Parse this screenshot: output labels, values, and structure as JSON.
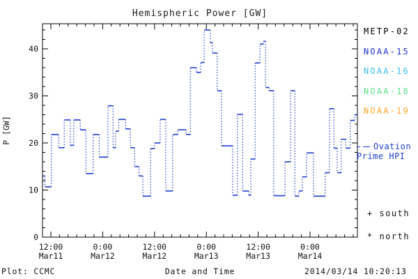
{
  "chart_data": {
    "type": "line",
    "subtype": "step-dotted",
    "title": "Hemispheric Power [GW]",
    "xlabel": "Date and Time",
    "ylabel": "P [GW]",
    "ylim": [
      0,
      45.3
    ],
    "grid": "off",
    "y_major_ticks": [
      0,
      10,
      20,
      30,
      40
    ],
    "y_minor_step_gw": 2,
    "x_minor_step_hours": 2,
    "x_domain_hours_since_Mar11_0000": [
      10.1,
      82.9
    ],
    "x_ticks": [
      {
        "t": 12,
        "time": "12:00",
        "date": "Mar11"
      },
      {
        "t": 24,
        "time": "0:00",
        "date": "Mar12"
      },
      {
        "t": 36,
        "time": "12:00",
        "date": "Mar12"
      },
      {
        "t": 48,
        "time": "0:00",
        "date": "Mar13"
      },
      {
        "t": 60,
        "time": "12:00",
        "date": "Mar13"
      },
      {
        "t": 72,
        "time": "0:00",
        "date": "Mar14"
      }
    ],
    "series": [
      {
        "name": "Ovation Prime HPI",
        "color": "#1e3fd0",
        "line_style": "solid horizontals, dotted verticals",
        "t_end_hours": 82.9,
        "t_hours": [
          10.1,
          10.6,
          12.1,
          13.8,
          15.1,
          16.5,
          17.3,
          18.8,
          20.1,
          21.8,
          23.2,
          25.2,
          26.4,
          27.0,
          27.7,
          29.3,
          30.4,
          31.4,
          32.4,
          33.3,
          35.1,
          36.0,
          37.3,
          38.6,
          40.2,
          41.4,
          43.3,
          44.3,
          45.7,
          46.7,
          47.5,
          48.9,
          49.4,
          50.5,
          51.5,
          54.1,
          55.2,
          56.4,
          57.8,
          58.3,
          59.3,
          60.4,
          61.2,
          61.7,
          62.5,
          63.6,
          66.2,
          67.5,
          68.5,
          69.4,
          70.2,
          71.2,
          72.8,
          75.5,
          76.5,
          77.5,
          78.3,
          79.2,
          80.3,
          81.3,
          82.3
        ],
        "gw": [
          13.0,
          10.7,
          21.8,
          19.0,
          24.9,
          19.5,
          24.9,
          22.8,
          13.5,
          21.8,
          17.0,
          27.9,
          19.0,
          22.5,
          25.0,
          23.0,
          19.0,
          15.0,
          13.0,
          8.7,
          18.8,
          20.0,
          25.0,
          9.8,
          21.8,
          22.8,
          21.8,
          36.0,
          35.0,
          37.1,
          44.0,
          41.3,
          39.1,
          31.1,
          19.4,
          8.9,
          26.1,
          9.8,
          8.9,
          16.6,
          37.0,
          41.0,
          41.6,
          31.8,
          31.1,
          8.8,
          16.0,
          31.1,
          8.7,
          9.8,
          12.8,
          17.9,
          8.7,
          13.7,
          27.3,
          18.9,
          13.7,
          20.8,
          18.9,
          24.8,
          26.0
        ]
      }
    ],
    "legend": [
      {
        "label": "METP-02",
        "color": "#000000"
      },
      {
        "label": "NOAA-15",
        "color": "#1e2fcc"
      },
      {
        "label": "NOAA-16",
        "color": "#3dbbee"
      },
      {
        "label": "NOAA-18",
        "color": "#5fdd8a"
      },
      {
        "label": "NOAA-19",
        "color": "#ffa428"
      }
    ],
    "annotations": {
      "ovation_label_line1": "Ovation",
      "ovation_label_line2": "Prime HPI",
      "south_marker": "+ south",
      "north_marker": "* north"
    },
    "axis_color": "#000000"
  },
  "footer": {
    "plot_credit": "Plot: CCMC",
    "timestamp": "2014/03/14 10:20:13"
  }
}
